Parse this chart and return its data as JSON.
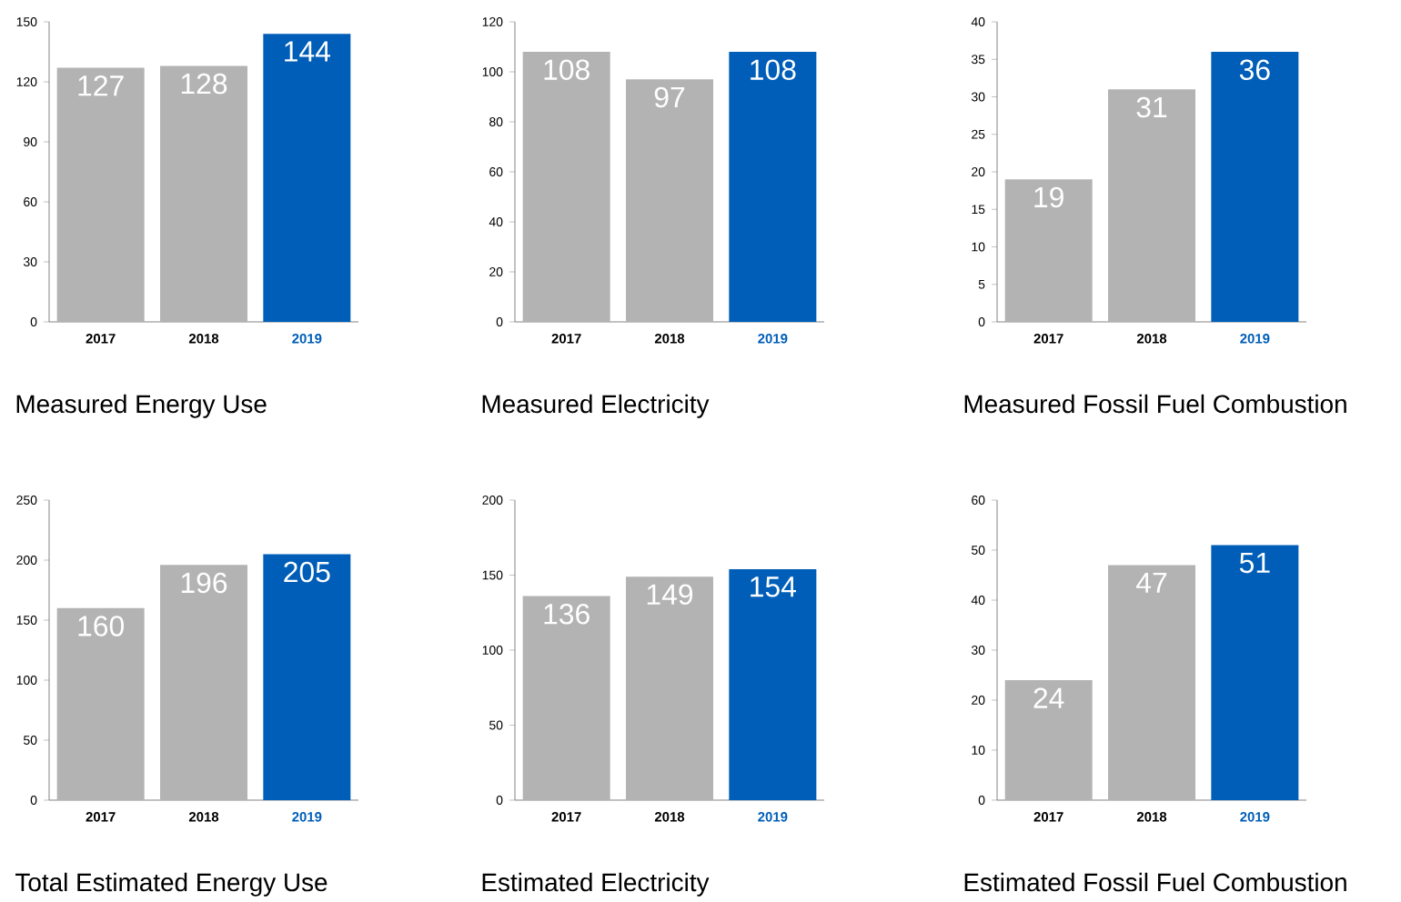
{
  "chart_data": [
    {
      "type": "bar",
      "title": "Measured Energy Use",
      "categories": [
        "2017",
        "2018",
        "2019"
      ],
      "values": [
        127,
        128,
        144
      ],
      "colors": [
        "#b3b3b3",
        "#b3b3b3",
        "#005eb8"
      ],
      "ylim": [
        0,
        150
      ],
      "yticks": [
        0,
        30,
        60,
        90,
        120,
        150
      ],
      "data_labels": true,
      "grid": false
    },
    {
      "type": "bar",
      "title": "Measured Electricity",
      "categories": [
        "2017",
        "2018",
        "2019"
      ],
      "values": [
        108,
        97,
        108
      ],
      "colors": [
        "#b3b3b3",
        "#b3b3b3",
        "#005eb8"
      ],
      "ylim": [
        0,
        120
      ],
      "yticks": [
        0,
        20,
        40,
        60,
        80,
        100,
        120
      ],
      "data_labels": true,
      "grid": false
    },
    {
      "type": "bar",
      "title": "Measured Fossil Fuel Combustion",
      "categories": [
        "2017",
        "2018",
        "2019"
      ],
      "values": [
        19,
        31,
        36
      ],
      "colors": [
        "#b3b3b3",
        "#b3b3b3",
        "#005eb8"
      ],
      "ylim": [
        0,
        40
      ],
      "yticks": [
        0,
        5,
        10,
        15,
        20,
        25,
        30,
        35,
        40
      ],
      "data_labels": true,
      "grid": false
    },
    {
      "type": "bar",
      "title": "Total Estimated Energy Use",
      "categories": [
        "2017",
        "2018",
        "2019"
      ],
      "values": [
        160,
        196,
        205
      ],
      "colors": [
        "#b3b3b3",
        "#b3b3b3",
        "#005eb8"
      ],
      "ylim": [
        0,
        250
      ],
      "yticks": [
        0,
        50,
        100,
        150,
        200,
        250
      ],
      "data_labels": true,
      "grid": false
    },
    {
      "type": "bar",
      "title": "Estimated Electricity",
      "categories": [
        "2017",
        "2018",
        "2019"
      ],
      "values": [
        136,
        149,
        154
      ],
      "colors": [
        "#b3b3b3",
        "#b3b3b3",
        "#005eb8"
      ],
      "ylim": [
        0,
        200
      ],
      "yticks": [
        0,
        50,
        100,
        150,
        200
      ],
      "data_labels": true,
      "grid": false
    },
    {
      "type": "bar",
      "title": "Estimated Fossil Fuel Combustion",
      "categories": [
        "2017",
        "2018",
        "2019"
      ],
      "values": [
        24,
        47,
        51
      ],
      "colors": [
        "#b3b3b3",
        "#b3b3b3",
        "#005eb8"
      ],
      "ylim": [
        0,
        60
      ],
      "yticks": [
        0,
        10,
        20,
        30,
        40,
        50,
        60
      ],
      "data_labels": true,
      "grid": false
    }
  ]
}
